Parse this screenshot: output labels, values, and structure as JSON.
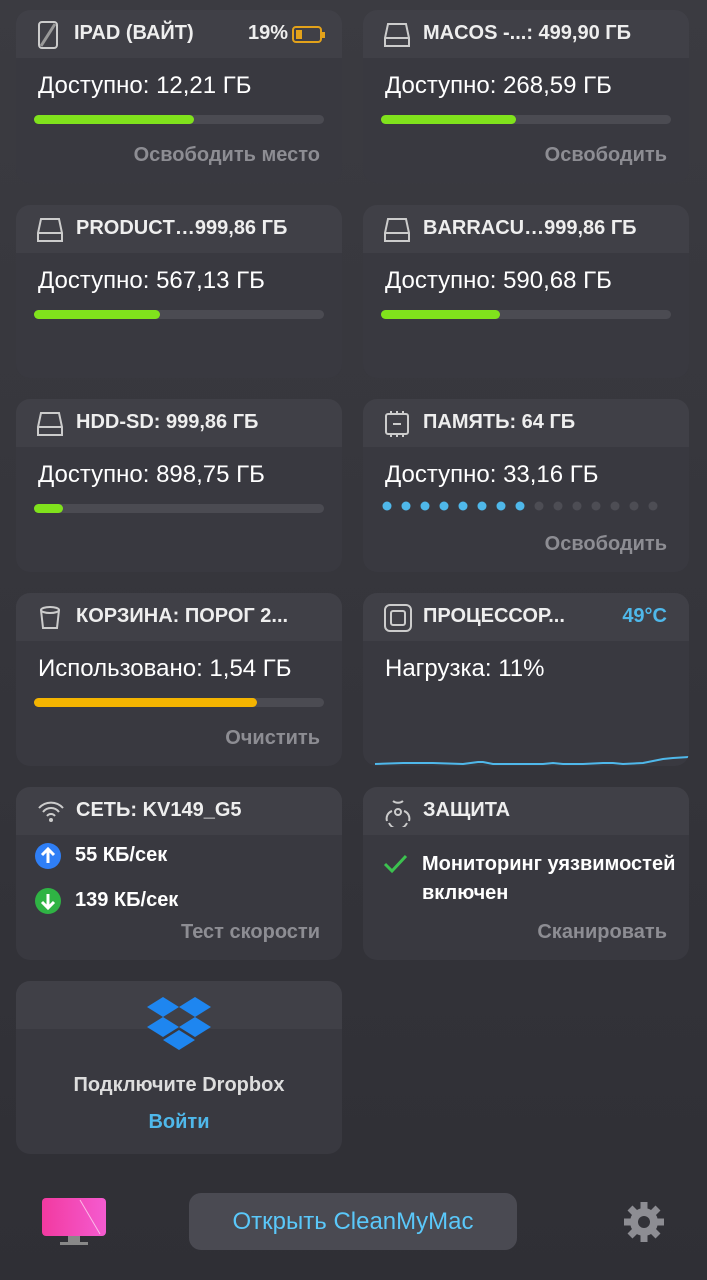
{
  "cards": [
    {
      "title": "IPAD (ВАЙТ)",
      "badge": "19%",
      "main": "Доступно: 12,21 ГБ",
      "action": "Освободить место"
    },
    {
      "title": "MACOS -...: 499,90 ГБ",
      "main": "Доступно: 268,59 ГБ",
      "action": "Освободить"
    },
    {
      "title": "PRODUCT…999,86 ГБ",
      "main": "Доступно: 567,13 ГБ"
    },
    {
      "title": "BARRACU…999,86 ГБ",
      "main": "Доступно: 590,68 ГБ"
    },
    {
      "title": "HDD-SD: 999,86 ГБ",
      "main": "Доступно: 898,75 ГБ"
    },
    {
      "title": "ПАМЯТЬ: 64 ГБ",
      "main": "Доступно: 33,16 ГБ",
      "action": "Освободить"
    },
    {
      "title": "КОРЗИНА: ПОРОГ 2...",
      "main": "Использовано: 1,54 ГБ",
      "action": "Очистить"
    },
    {
      "title": "ПРОЦЕССОР...",
      "badge": "49°C",
      "main": "Нагрузка: 11%"
    },
    {
      "title": "СЕТЬ: KV149_G5",
      "upload": "55 КБ/сек",
      "download": "139 КБ/сек",
      "action": "Тест скорости"
    },
    {
      "title": "ЗАЩИТА",
      "main": "Мониторинг уязвимостей включен",
      "action": "Сканировать"
    },
    {
      "main": "Подключите Dropbox",
      "action": "Войти"
    }
  ],
  "footer": {
    "button": "Открыть CleanMyMac"
  }
}
